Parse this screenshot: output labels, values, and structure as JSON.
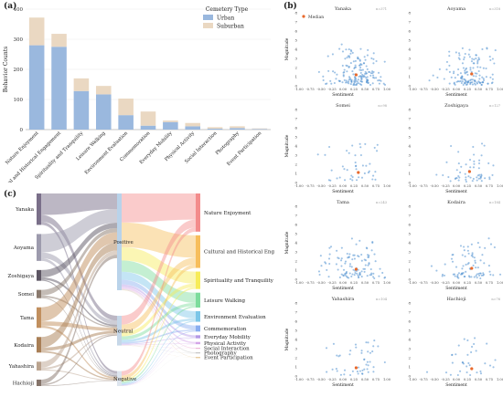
{
  "labels": {
    "a": "(a)",
    "b": "(b)",
    "c": "(c)"
  },
  "colors": {
    "urban": "#9ab8de",
    "suburban": "#ead8c2",
    "scatter": "#4f8fcf",
    "median": "#e8692c"
  },
  "chart_data": [
    {
      "type": "bar",
      "stacked": true,
      "categories": [
        "Nature Enjoyment",
        "Cultural and Historical Engagement",
        "Spirituality and Tranquility",
        "Leisure Walking",
        "Environment Evaluation",
        "Commemoration",
        "Everyday Mobility",
        "Physical Activity",
        "Social Interaction",
        "Photography",
        "Event Participation"
      ],
      "series": [
        {
          "name": "Urban",
          "values": [
            280,
            275,
            128,
            117,
            48,
            13,
            25,
            11,
            3,
            5,
            2
          ]
        },
        {
          "name": "Suburban",
          "values": [
            92,
            43,
            42,
            28,
            55,
            47,
            5,
            11,
            5,
            6,
            2
          ]
        }
      ],
      "ylabel": "Behavior Counts",
      "ylim": [
        0,
        400
      ],
      "yticks": [
        0,
        100,
        200,
        300,
        400
      ],
      "legend": {
        "title": "Cemetery Type",
        "placement": "top-right"
      }
    },
    {
      "type": "scatter",
      "panels": [
        {
          "title": "Yanaka",
          "n": "n=371"
        },
        {
          "title": "Aoyama",
          "n": "n=318"
        },
        {
          "title": "Somei",
          "n": "n=98"
        },
        {
          "title": "Zoshigaya",
          "n": "n=127"
        },
        {
          "title": "Tama",
          "n": "n=243"
        },
        {
          "title": "Kodaira",
          "n": "n=184"
        },
        {
          "title": "Yahashira",
          "n": "n=104"
        },
        {
          "title": "Hachioji",
          "n": "n=76"
        }
      ],
      "xlabel": "Sentiment",
      "ylabel": "Magnitude",
      "xlim": [
        -1,
        1
      ],
      "xticks": [
        "-1.00",
        "-0.75",
        "-0.50",
        "-0.25",
        "0.00",
        "0.25",
        "0.50",
        "0.75",
        "1.00"
      ],
      "ylim": [
        0,
        8
      ],
      "yticks": [
        0,
        1,
        2,
        3,
        4,
        5,
        6,
        7,
        8
      ],
      "legend": "Median",
      "medians": [
        [
          0.3,
          1.2
        ],
        [
          0.35,
          1.3
        ],
        [
          0.35,
          1.1
        ],
        [
          0.3,
          1.2
        ],
        [
          0.3,
          1.1
        ],
        [
          0.35,
          1.2
        ],
        [
          0.3,
          0.9
        ],
        [
          0.35,
          0.8
        ]
      ]
    },
    {
      "type": "sankey",
      "sources": [
        {
          "name": "Yanaka",
          "value": 371
        },
        {
          "name": "Aoyama",
          "value": 318
        },
        {
          "name": "Zoshigaya",
          "value": 127
        },
        {
          "name": "Somei",
          "value": 98
        },
        {
          "name": "Tama",
          "value": 243
        },
        {
          "name": "Kodaira",
          "value": 184
        },
        {
          "name": "Yahashira",
          "value": 104
        },
        {
          "name": "Hachioji",
          "value": 76
        }
      ],
      "sentiments": [
        {
          "name": "Positive",
          "value": 1040
        },
        {
          "name": "Neutral",
          "value": 320
        },
        {
          "name": "Negative",
          "value": 161
        }
      ],
      "behaviors": [
        {
          "name": "Nature Enjoyment",
          "value": 372
        },
        {
          "name": "Cultural and Historical Engagement",
          "value": 318
        },
        {
          "name": "Spirituality and Tranquility",
          "value": 170
        },
        {
          "name": "Leisure Walking",
          "value": 145
        },
        {
          "name": "Environment Evaluation",
          "value": 103
        },
        {
          "name": "Commemoration",
          "value": 60
        },
        {
          "name": "Everyday Mobility",
          "value": 30
        },
        {
          "name": "Physical Activity",
          "value": 22
        },
        {
          "name": "Social Interaction",
          "value": 8
        },
        {
          "name": "Photography",
          "value": 11
        },
        {
          "name": "Event Participation",
          "value": 4
        }
      ]
    }
  ]
}
